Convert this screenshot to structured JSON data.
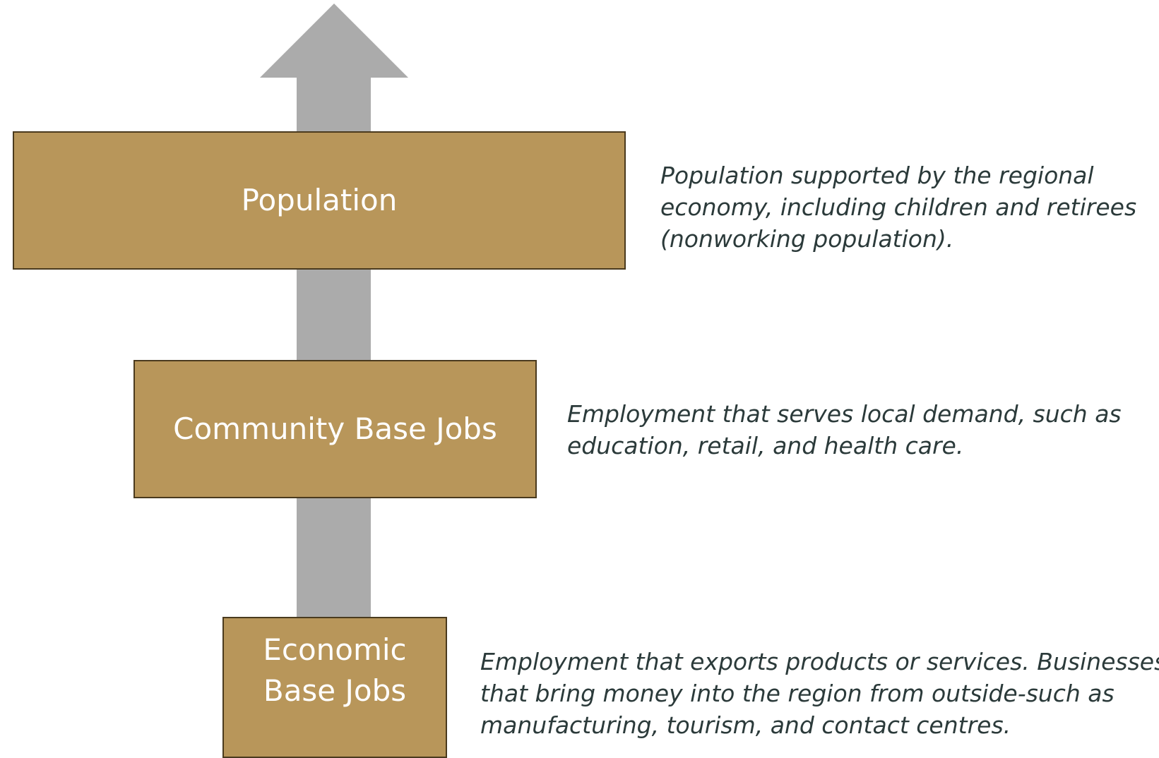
{
  "nodes": [
    {
      "label": "Population",
      "description": [
        "Population supported by the regional",
        "economy, including children and retirees",
        "(nonworking population)."
      ]
    },
    {
      "label": "Community Base Jobs",
      "description": [
        "Employment that serves local demand, such as",
        "education, retail, and health care."
      ]
    },
    {
      "label": "Economic Base Jobs",
      "description": [
        "Employment that exports products or services. Businesses",
        "that bring money into the region from outside-such as",
        "manufacturing, tourism, and contact centres."
      ]
    }
  ]
}
